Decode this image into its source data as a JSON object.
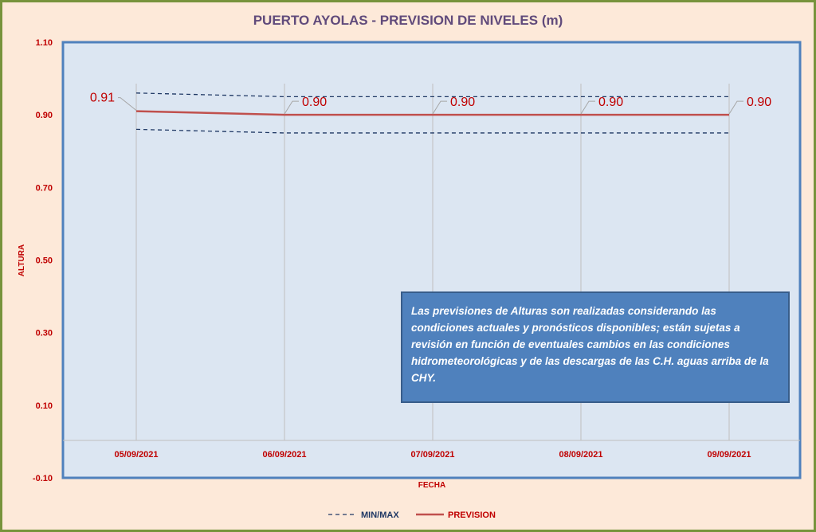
{
  "chart_data": {
    "type": "line",
    "title": "PUERTO AYOLAS - PREVISION DE NIVELES (m)",
    "xlabel": "FECHA",
    "ylabel": "ALTURA",
    "categories": [
      "05/09/2021",
      "06/09/2021",
      "07/09/2021",
      "08/09/2021",
      "09/09/2021"
    ],
    "ylim": [
      -0.1,
      1.1
    ],
    "yticks": [
      "1.10",
      "0.90",
      "0.70",
      "0.50",
      "0.30",
      "0.10",
      "-0.10"
    ],
    "series": [
      {
        "name": "MIN/MAX",
        "style": "dashed",
        "color": "#1f3864",
        "values": [
          0.96,
          0.95,
          0.95,
          0.95,
          0.95
        ]
      },
      {
        "name": "MIN/MAX",
        "style": "dashed",
        "color": "#1f3864",
        "values": [
          0.86,
          0.85,
          0.85,
          0.85,
          0.85
        ]
      },
      {
        "name": "PREVISION",
        "style": "solid",
        "color": "#c0504d",
        "values": [
          0.91,
          0.9,
          0.9,
          0.9,
          0.9
        ],
        "labels": [
          "0.91",
          "0.90",
          "0.90",
          "0.90",
          "0.90"
        ]
      }
    ],
    "legend": {
      "placement": "bottom",
      "entries": [
        {
          "label": "MIN/MAX",
          "style": "dashed",
          "color": "#1f3864"
        },
        {
          "label": "PREVISION",
          "style": "solid",
          "color": "#c0504d"
        }
      ]
    },
    "colors": {
      "plot_background": "#dce6f2",
      "plot_border": "#4f81bd",
      "page_background": "#fde9d9",
      "accent": "#c00000"
    },
    "grid": "vertical"
  },
  "note": "Las previsiones de Alturas son realizadas considerando las condiciones actuales y pronósticos disponibles;  están sujetas a revisión en función de eventuales cambios en las condiciones hidrometeorológicas y de las descargas de las C.H. aguas arriba de la CHY."
}
